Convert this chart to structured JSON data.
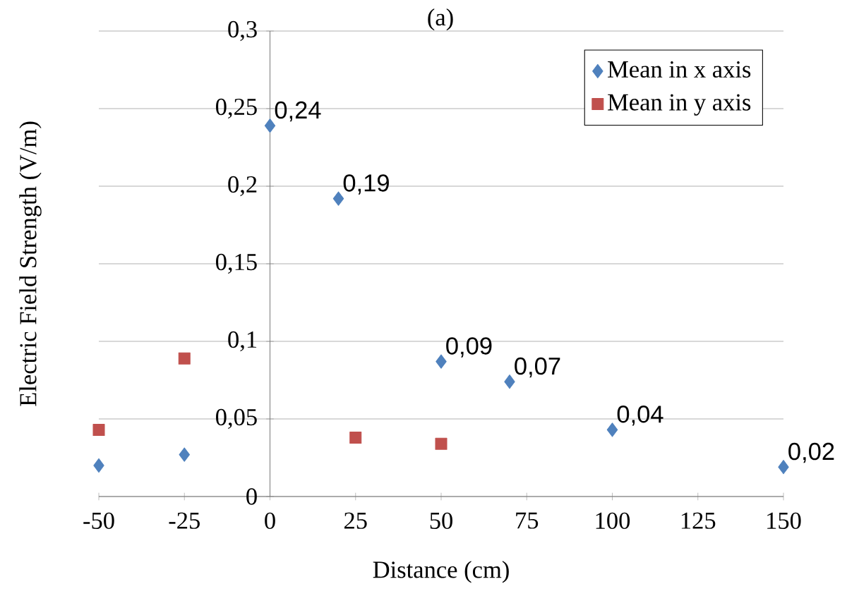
{
  "chart_data": {
    "type": "scatter",
    "title": "(a)",
    "xlabel": "Distance (cm)",
    "ylabel": "Electric Field Strength (V/m)",
    "xlim": [
      -50,
      150
    ],
    "xticks": [
      -50,
      -25,
      0,
      25,
      50,
      75,
      100,
      125,
      150
    ],
    "ylim": [
      0,
      0.3
    ],
    "yticks": [
      0,
      {
        "value": 0.05,
        "label": "0,05"
      },
      {
        "value": 0.1,
        "label": "0,1"
      },
      {
        "value": 0.15,
        "label": "0,15"
      },
      {
        "value": 0.2,
        "label": "0,2"
      },
      {
        "value": 0.25,
        "label": "0,25"
      },
      {
        "value": 0.3,
        "label": "0,3"
      }
    ],
    "grid": "y",
    "legend": "top right",
    "series": [
      {
        "name": "Mean in x axis",
        "color": "#4f81bd",
        "marker": "diamond",
        "x": [
          -50,
          -25,
          0,
          20,
          50,
          70,
          100,
          150
        ],
        "values": [
          0.02,
          0.027,
          0.239,
          0.192,
          0.087,
          0.074,
          0.043,
          0.019
        ],
        "value_labels": [
          null,
          null,
          "0,24",
          "0,19",
          "0,09",
          "0,07",
          "0,04",
          "0,02"
        ]
      },
      {
        "name": "Mean in y axis",
        "color": "#c0504d",
        "marker": "square",
        "x": [
          -50,
          -25,
          25,
          50
        ],
        "values": [
          0.043,
          0.089,
          0.038,
          0.034
        ]
      }
    ]
  }
}
